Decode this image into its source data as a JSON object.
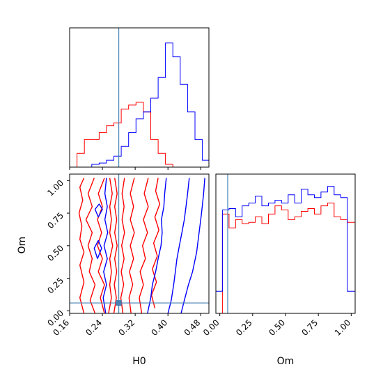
{
  "chart_data": {
    "type": "corner",
    "parameters": [
      "H0",
      "Om"
    ],
    "truth": {
      "H0": 0.28,
      "Om": 0.06
    },
    "truth_color": "#4682b4",
    "series": [
      {
        "color": "#ff0000"
      },
      {
        "color": "#0000ff"
      }
    ],
    "panels": {
      "hist_H0": {
        "xlim": [
          0.16,
          0.5
        ],
        "bins": [
          0.16,
          0.178,
          0.196,
          0.214,
          0.232,
          0.25,
          0.268,
          0.286,
          0.304,
          0.322,
          0.34,
          0.358,
          0.376,
          0.394,
          0.412,
          0.43,
          0.448,
          0.466,
          0.484,
          0.5
        ],
        "red": [
          0.0,
          0.1,
          0.2,
          0.2,
          0.25,
          0.3,
          0.32,
          0.42,
          0.45,
          0.47,
          0.4,
          0.2,
          0.1,
          0.02,
          0.0,
          0.0,
          0.0,
          0.0,
          0.0
        ],
        "blue": [
          0.0,
          0.0,
          0.0,
          0.02,
          0.03,
          0.05,
          0.08,
          0.15,
          0.25,
          0.35,
          0.4,
          0.5,
          0.65,
          0.9,
          0.8,
          0.6,
          0.4,
          0.2,
          0.05
        ]
      },
      "hist_Om": {
        "xlim": [
          -0.03,
          1.03
        ],
        "xticks": [
          0.0,
          0.25,
          0.5,
          0.75,
          1.0
        ],
        "xtick_labels": [
          "0.00",
          "0.25",
          "0.50",
          "0.75",
          "1.00"
        ],
        "bins": [
          -0.03,
          0.02,
          0.07,
          0.12,
          0.17,
          0.22,
          0.27,
          0.32,
          0.37,
          0.42,
          0.47,
          0.52,
          0.57,
          0.62,
          0.67,
          0.72,
          0.77,
          0.82,
          0.87,
          0.92,
          0.97,
          1.03
        ],
        "red": [
          0.0,
          0.72,
          0.62,
          0.68,
          0.65,
          0.66,
          0.7,
          0.65,
          0.72,
          0.78,
          0.75,
          0.68,
          0.7,
          0.74,
          0.76,
          0.72,
          0.78,
          0.8,
          0.7,
          0.68,
          0.66
        ],
        "blue": [
          0.16,
          0.75,
          0.76,
          0.7,
          0.78,
          0.8,
          0.85,
          0.78,
          0.8,
          0.82,
          0.8,
          0.86,
          0.8,
          0.9,
          0.86,
          0.84,
          0.88,
          0.92,
          0.86,
          0.84,
          0.16
        ]
      },
      "joint": {
        "xlim": [
          0.16,
          0.5
        ],
        "ylim": [
          -0.02,
          1.05
        ],
        "xticks": [
          0.16,
          0.24,
          0.32,
          0.4,
          0.48
        ],
        "xtick_labels": [
          "0.16",
          "0.24",
          "0.32",
          "0.40",
          "0.48"
        ],
        "yticks": [
          0.0,
          0.25,
          0.5,
          0.75,
          1.0
        ],
        "ytick_labels": [
          "0.00",
          "0.25",
          "0.50",
          "0.75",
          "1.00"
        ],
        "xlabel": "H0",
        "ylabel": "Om",
        "contours": {
          "red": [
            [
              [
                0.195,
                -0.02
              ],
              [
                0.185,
                0.1
              ],
              [
                0.195,
                0.22
              ],
              [
                0.185,
                0.35
              ],
              [
                0.195,
                0.45
              ],
              [
                0.185,
                0.55
              ],
              [
                0.19,
                0.65
              ],
              [
                0.183,
                0.75
              ],
              [
                0.192,
                0.85
              ],
              [
                0.185,
                0.95
              ],
              [
                0.195,
                1.02
              ]
            ],
            [
              [
                0.222,
                -0.02
              ],
              [
                0.21,
                0.08
              ],
              [
                0.222,
                0.2
              ],
              [
                0.208,
                0.3
              ],
              [
                0.215,
                0.4
              ],
              [
                0.205,
                0.5
              ],
              [
                0.215,
                0.6
              ],
              [
                0.2,
                0.7
              ],
              [
                0.215,
                0.8
              ],
              [
                0.205,
                0.9
              ],
              [
                0.22,
                1.02
              ]
            ],
            [
              [
                0.245,
                -0.02
              ],
              [
                0.235,
                0.1
              ],
              [
                0.245,
                0.2
              ],
              [
                0.23,
                0.3
              ],
              [
                0.24,
                0.4
              ],
              [
                0.228,
                0.5
              ],
              [
                0.238,
                0.6
              ],
              [
                0.228,
                0.7
              ],
              [
                0.24,
                0.8
              ],
              [
                0.23,
                0.9
              ],
              [
                0.245,
                1.02
              ]
            ],
            [
              [
                0.255,
                -0.02
              ],
              [
                0.262,
                0.1
              ],
              [
                0.258,
                0.2
              ],
              [
                0.262,
                0.3
              ],
              [
                0.258,
                0.4
              ],
              [
                0.265,
                0.5
              ],
              [
                0.258,
                0.6
              ],
              [
                0.262,
                0.7
              ],
              [
                0.258,
                0.8
              ],
              [
                0.264,
                0.9
              ],
              [
                0.258,
                1.02
              ]
            ],
            [
              [
                0.268,
                -0.02
              ],
              [
                0.274,
                0.1
              ],
              [
                0.269,
                0.2
              ],
              [
                0.275,
                0.3
              ],
              [
                0.27,
                0.4
              ],
              [
                0.276,
                0.5
              ],
              [
                0.27,
                0.6
              ],
              [
                0.275,
                0.7
              ],
              [
                0.27,
                0.8
              ],
              [
                0.276,
                0.9
              ],
              [
                0.27,
                1.02
              ]
            ],
            [
              [
                0.29,
                -0.02
              ],
              [
                0.285,
                0.1
              ],
              [
                0.292,
                0.2
              ],
              [
                0.286,
                0.3
              ],
              [
                0.293,
                0.4
              ],
              [
                0.287,
                0.5
              ],
              [
                0.294,
                0.6
              ],
              [
                0.288,
                0.7
              ],
              [
                0.293,
                0.8
              ],
              [
                0.288,
                0.9
              ],
              [
                0.294,
                1.02
              ]
            ],
            [
              [
                0.31,
                -0.02
              ],
              [
                0.305,
                0.1
              ],
              [
                0.314,
                0.2
              ],
              [
                0.306,
                0.3
              ],
              [
                0.316,
                0.4
              ],
              [
                0.308,
                0.5
              ],
              [
                0.318,
                0.6
              ],
              [
                0.308,
                0.7
              ],
              [
                0.316,
                0.8
              ],
              [
                0.308,
                0.9
              ],
              [
                0.318,
                1.02
              ]
            ],
            [
              [
                0.336,
                -0.02
              ],
              [
                0.33,
                0.1
              ],
              [
                0.34,
                0.2
              ],
              [
                0.332,
                0.3
              ],
              [
                0.345,
                0.4
              ],
              [
                0.338,
                0.5
              ],
              [
                0.35,
                0.6
              ],
              [
                0.34,
                0.7
              ],
              [
                0.352,
                0.8
              ],
              [
                0.342,
                0.9
              ],
              [
                0.352,
                1.02
              ]
            ],
            [
              [
                0.368,
                0.02
              ],
              [
                0.36,
                0.12
              ],
              [
                0.372,
                0.22
              ],
              [
                0.362,
                0.32
              ],
              [
                0.374,
                0.42
              ],
              [
                0.365,
                0.52
              ],
              [
                0.378,
                0.62
              ],
              [
                0.368,
                0.72
              ],
              [
                0.38,
                0.82
              ],
              [
                0.37,
                0.92
              ],
              [
                0.376,
                1.02
              ]
            ]
          ],
          "blue": [
            [
              [
                0.248,
                -0.02
              ],
              [
                0.242,
                0.1
              ],
              [
                0.25,
                0.2
              ],
              [
                0.243,
                0.3
              ],
              [
                0.252,
                0.4
              ],
              [
                0.244,
                0.5
              ],
              [
                0.253,
                0.6
              ],
              [
                0.246,
                0.7
              ],
              [
                0.252,
                0.8
              ],
              [
                0.246,
                0.9
              ],
              [
                0.25,
                1.02
              ]
            ],
            [
              [
                0.35,
                -0.02
              ],
              [
                0.358,
                0.1
              ],
              [
                0.362,
                0.2
              ],
              [
                0.37,
                0.3
              ],
              [
                0.376,
                0.4
              ],
              [
                0.383,
                0.5
              ],
              [
                0.386,
                0.6
              ],
              [
                0.384,
                0.7
              ],
              [
                0.39,
                0.8
              ],
              [
                0.392,
                0.9
              ],
              [
                0.396,
                1.02
              ]
            ],
            [
              [
                0.4,
                -0.02
              ],
              [
                0.408,
                0.08
              ],
              [
                0.414,
                0.2
              ],
              [
                0.418,
                0.3
              ],
              [
                0.422,
                0.4
              ],
              [
                0.428,
                0.5
              ],
              [
                0.434,
                0.6
              ],
              [
                0.44,
                0.7
              ],
              [
                0.444,
                0.8
              ],
              [
                0.448,
                0.9
              ],
              [
                0.452,
                1.02
              ]
            ],
            [
              [
                0.432,
                -0.02
              ],
              [
                0.44,
                0.08
              ],
              [
                0.45,
                0.2
              ],
              [
                0.46,
                0.3
              ],
              [
                0.47,
                0.45
              ],
              [
                0.476,
                0.6
              ],
              [
                0.482,
                0.75
              ],
              [
                0.487,
                0.9
              ],
              [
                0.49,
                1.02
              ]
            ],
            [
              [
                0.23,
                0.72
              ],
              [
                0.222,
                0.78
              ],
              [
                0.232,
                0.82
              ],
              [
                0.24,
                0.78
              ],
              [
                0.23,
                0.72
              ]
            ],
            [
              [
                0.228,
                0.4
              ],
              [
                0.22,
                0.48
              ],
              [
                0.23,
                0.54
              ],
              [
                0.238,
                0.48
              ],
              [
                0.228,
                0.4
              ]
            ]
          ]
        }
      }
    }
  }
}
